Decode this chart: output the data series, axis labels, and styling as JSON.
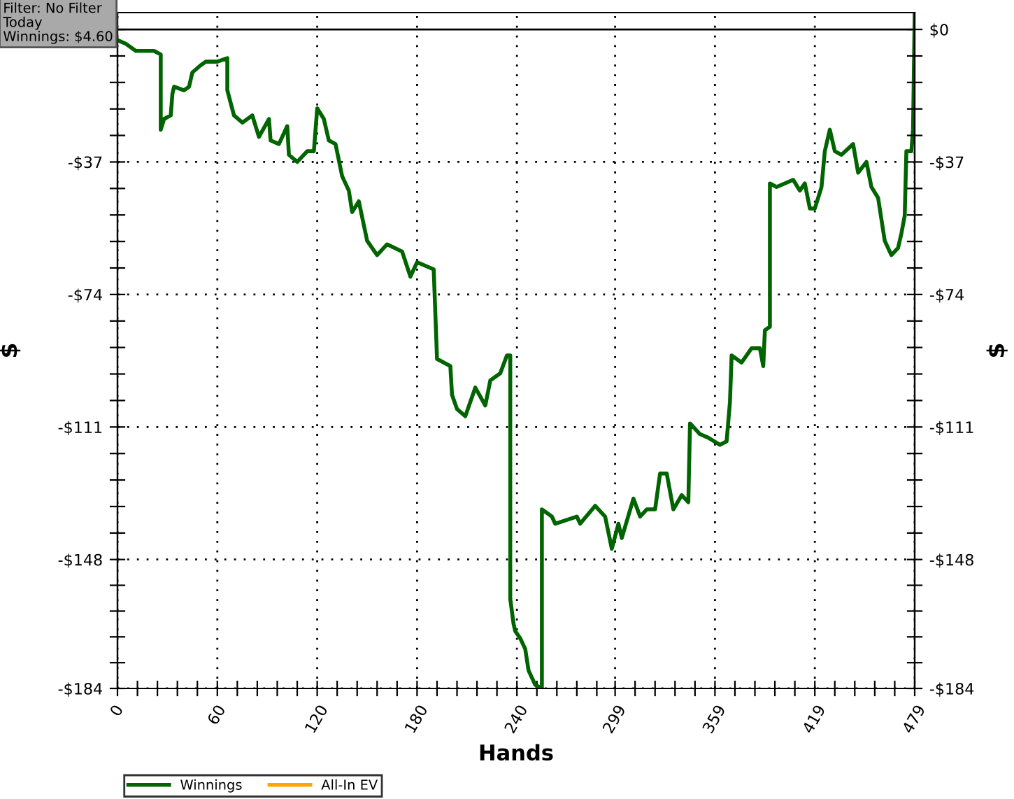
{
  "chart_data": {
    "type": "line",
    "xlabel": "Hands",
    "ylabel": "$",
    "y2label": "$",
    "annotations": [
      "Filter: No Filter\nToday\nWinnings: $4.60"
    ],
    "xlim": [
      0,
      479
    ],
    "xticks": [
      0,
      {
        "value": 12,
        "label": null
      },
      {
        "value": 24,
        "label": null
      },
      {
        "value": 36,
        "label": null
      },
      {
        "value": 48,
        "label": null
      },
      60,
      {
        "value": 72,
        "label": null
      },
      {
        "value": 84,
        "label": null
      },
      {
        "value": 96,
        "label": null
      },
      {
        "value": 108,
        "label": null
      },
      120,
      {
        "value": 132,
        "label": null
      },
      {
        "value": 144,
        "label": null
      },
      {
        "value": 156,
        "label": null
      },
      {
        "value": 168,
        "label": null
      },
      180,
      {
        "value": 192,
        "label": null
      },
      {
        "value": 204,
        "label": null
      },
      {
        "value": 216,
        "label": null
      },
      {
        "value": 228,
        "label": null
      },
      240,
      {
        "value": 252,
        "label": null
      },
      {
        "value": 264,
        "label": null
      },
      {
        "value": 276,
        "label": null
      },
      {
        "value": 288,
        "label": null
      },
      299,
      {
        "value": 311,
        "label": null
      },
      {
        "value": 323,
        "label": null
      },
      {
        "value": 335,
        "label": null
      },
      {
        "value": 347,
        "label": null
      },
      359,
      {
        "value": 371,
        "label": null
      },
      {
        "value": 383,
        "label": null
      },
      {
        "value": 395,
        "label": null
      },
      {
        "value": 407,
        "label": null
      },
      419,
      {
        "value": 431,
        "label": null
      },
      {
        "value": 443,
        "label": null
      },
      {
        "value": 455,
        "label": null
      },
      {
        "value": 467,
        "label": null
      },
      479
    ],
    "ylim": [
      -184,
      4.7
    ],
    "yticks": [
      {
        "value": 0,
        "label": null
      },
      {
        "value": -7.4,
        "label": null
      },
      {
        "value": -14.8,
        "label": null
      },
      {
        "value": -22.2,
        "label": null
      },
      {
        "value": -29.6,
        "label": null
      },
      {
        "value": -37,
        "label": "-$37"
      },
      {
        "value": -44.4,
        "label": null
      },
      {
        "value": -51.8,
        "label": null
      },
      {
        "value": -59.2,
        "label": null
      },
      {
        "value": -66.6,
        "label": null
      },
      {
        "value": -74,
        "label": "-$74"
      },
      {
        "value": -81.4,
        "label": null
      },
      {
        "value": -88.8,
        "label": null
      },
      {
        "value": -96.2,
        "label": null
      },
      {
        "value": -103.6,
        "label": null
      },
      {
        "value": -111,
        "label": "-$111"
      },
      {
        "value": -118.4,
        "label": null
      },
      {
        "value": -125.8,
        "label": null
      },
      {
        "value": -133.2,
        "label": null
      },
      {
        "value": -140.6,
        "label": null
      },
      {
        "value": -148,
        "label": "-$148"
      },
      {
        "value": -155.2,
        "label": null
      },
      {
        "value": -162.4,
        "label": null
      },
      {
        "value": -169.6,
        "label": null
      },
      {
        "value": -176.8,
        "label": null
      },
      {
        "value": -184,
        "label": "-$184"
      }
    ],
    "y2lim": [
      -184,
      4.7
    ],
    "y2ticks": [
      {
        "value": 0,
        "label": "$0"
      },
      {
        "value": -7.4,
        "label": null
      },
      {
        "value": -14.8,
        "label": null
      },
      {
        "value": -22.2,
        "label": null
      },
      {
        "value": -29.6,
        "label": null
      },
      {
        "value": -37,
        "label": "-$37"
      },
      {
        "value": -44.4,
        "label": null
      },
      {
        "value": -51.8,
        "label": null
      },
      {
        "value": -59.2,
        "label": null
      },
      {
        "value": -66.6,
        "label": null
      },
      {
        "value": -74,
        "label": "-$74"
      },
      {
        "value": -81.4,
        "label": null
      },
      {
        "value": -88.8,
        "label": null
      },
      {
        "value": -96.2,
        "label": null
      },
      {
        "value": -103.6,
        "label": null
      },
      {
        "value": -111,
        "label": "-$111"
      },
      {
        "value": -118.4,
        "label": null
      },
      {
        "value": -125.8,
        "label": null
      },
      {
        "value": -133.2,
        "label": null
      },
      {
        "value": -140.6,
        "label": null
      },
      {
        "value": -148,
        "label": "-$148"
      },
      {
        "value": -155.2,
        "label": null
      },
      {
        "value": -162.4,
        "label": null
      },
      {
        "value": -169.6,
        "label": null
      },
      {
        "value": -176.8,
        "label": null
      },
      {
        "value": -184,
        "label": "-$184"
      }
    ],
    "grid": true,
    "legend": "bottom",
    "marker": "none",
    "line_style": "solid",
    "ref_lines": [
      {
        "axis": "y",
        "value": 0,
        "color": "#000000",
        "line_style": "solid"
      }
    ],
    "series": [
      {
        "name": "Winnings",
        "color": "#006400",
        "x": [
          0,
          5,
          11,
          22,
          26,
          26,
          28,
          32,
          33,
          34,
          40,
          43,
          45,
          50,
          53,
          60,
          66,
          66,
          70,
          75,
          81,
          85,
          91,
          92,
          97,
          102,
          103,
          108,
          114,
          118,
          120,
          124,
          127,
          131,
          135,
          139,
          141,
          145,
          150,
          156,
          162,
          171,
          176,
          180,
          190,
          192,
          200,
          201,
          204,
          209,
          215,
          221,
          224,
          230,
          234,
          236,
          236,
          238,
          239,
          242,
          245,
          247,
          251,
          255,
          255,
          261,
          263,
          276,
          278,
          287,
          289,
          293,
          297,
          301,
          303,
          310,
          314,
          318,
          323,
          326,
          330,
          334,
          339,
          343,
          344,
          350,
          355,
          362,
          366,
          368,
          369,
          375,
          381,
          386,
          388,
          389,
          392,
          392,
          396,
          406,
          410,
          413,
          416,
          419,
          423,
          425,
          428,
          431,
          435,
          442,
          445,
          450,
          453,
          457,
          461,
          465,
          469,
          471,
          473,
          474,
          477,
          478,
          479
        ],
        "values": [
          -3,
          -4,
          -6,
          -6,
          -7,
          -28,
          -25,
          -24,
          -18,
          -16,
          -17,
          -16,
          -12,
          -10,
          -9,
          -9,
          -8,
          -17,
          -24,
          -26,
          -24,
          -30,
          -25,
          -31,
          -32,
          -27,
          -35,
          -37,
          -34,
          -34,
          -22,
          -25,
          -31,
          -32,
          -41,
          -45,
          -51,
          -48,
          -59,
          -63,
          -60,
          -62,
          -69,
          -65,
          -67,
          -92,
          -94,
          -102,
          -106,
          -108,
          -100,
          -105,
          -98,
          -96,
          -91,
          -91,
          -159,
          -166,
          -168,
          -170,
          -173,
          -179,
          -183,
          -184,
          -134,
          -136,
          -138,
          -136,
          -138,
          -133,
          -134,
          -136,
          -145,
          -138,
          -142,
          -131,
          -136,
          -134,
          -134,
          -124,
          -124,
          -134,
          -130,
          -132,
          -110,
          -113,
          -114,
          -116,
          -115,
          -104,
          -91,
          -93,
          -89,
          -89,
          -94,
          -84,
          -83,
          -43,
          -44,
          -42,
          -45,
          -43,
          -50,
          -50,
          -44,
          -34,
          -28,
          -34,
          -35,
          -32,
          -40,
          -37,
          -44,
          -47,
          -59,
          -63,
          -61,
          -57,
          -52,
          -34,
          -34,
          -28,
          4.6
        ]
      },
      {
        "name": "All-In EV",
        "color": "#ffa500"
      }
    ]
  }
}
